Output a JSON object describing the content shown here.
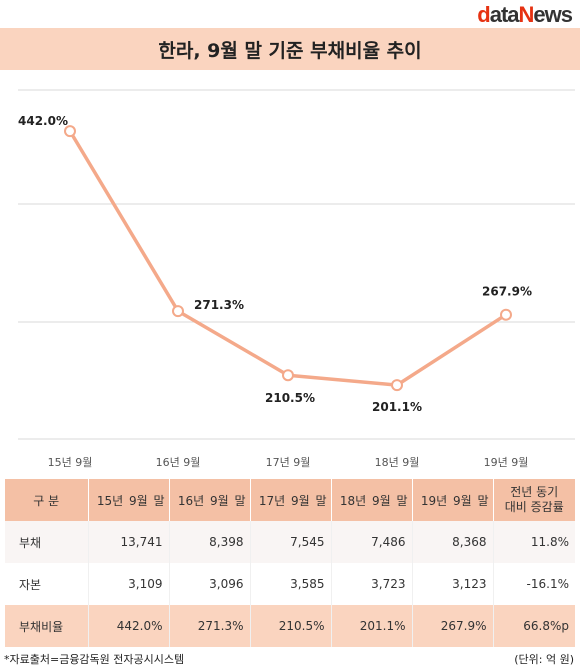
{
  "brand": {
    "d": "d",
    "ata": "ata",
    "N": "N",
    "ews": "ews"
  },
  "title": "한라, 9월 말 기준 부채비율 추이",
  "chart_data": {
    "type": "line",
    "title": "한라, 9월 말 기준 부채비율 추이",
    "categories": [
      "15년 9월",
      "16년 9월",
      "17년 9월",
      "18년 9월",
      "19년 9월"
    ],
    "series": [
      {
        "values": [
          442.0,
          271.3,
          210.5,
          201.1,
          267.9
        ],
        "labels": [
          "442.0%",
          "271.3%",
          "210.5%",
          "201.1%",
          "267.9%"
        ]
      }
    ],
    "ylim": [
      150,
      500
    ],
    "grid": true,
    "line_color": "#f4a98a"
  },
  "table": {
    "headers": [
      "구 분",
      "15년 9월 말",
      "16년 9월 말",
      "17년 9월 말",
      "18년 9월 말",
      "19년 9월 말",
      "전년 동기",
      "대비 증감률"
    ],
    "rows": [
      {
        "label": "부채",
        "values": [
          "13,741",
          "8,398",
          "7,545",
          "7,486",
          "8,368",
          "11.8%"
        ]
      },
      {
        "label": "자본",
        "values": [
          "3,109",
          "3,096",
          "3,585",
          "3,723",
          "3,123",
          "-16.1%"
        ]
      },
      {
        "label": "부채비율",
        "values": [
          "442.0%",
          "271.3%",
          "210.5%",
          "201.1%",
          "267.9%",
          "66.8%p"
        ]
      }
    ]
  },
  "footer": {
    "source": "*자료출처=금융감독원 전자공시시스템",
    "unit": "(단위: 억 원)"
  }
}
